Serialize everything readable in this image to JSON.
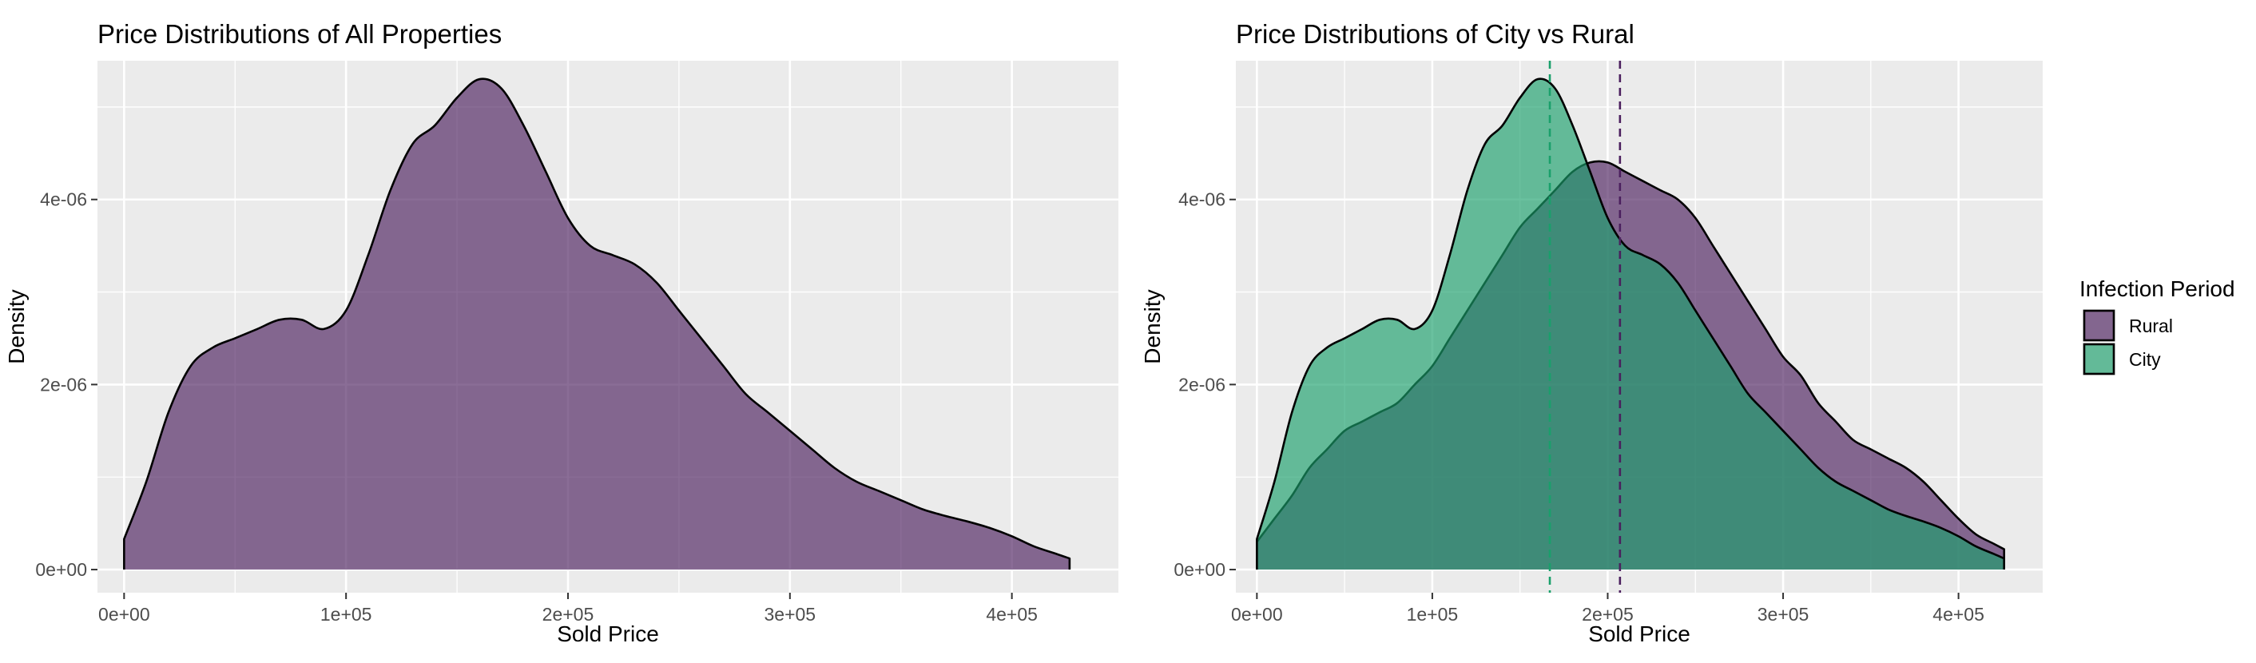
{
  "chart_data": [
    {
      "type": "area",
      "title": "Price Distributions of All Properties",
      "xlabel": "Sold Price",
      "ylabel": "Density",
      "xlim": [
        -12000,
        448000
      ],
      "ylim": [
        -2.5e-07,
        5.5e-06
      ],
      "x_ticks": [
        0,
        100000,
        200000,
        300000,
        400000
      ],
      "x_tick_labels": [
        "0e+00",
        "1e+05",
        "2e+05",
        "3e+05",
        "4e+05"
      ],
      "y_ticks": [
        0,
        2e-06,
        4e-06
      ],
      "y_tick_labels": [
        "0e+00",
        "2e-06",
        "4e-06"
      ],
      "grid": true,
      "series": [
        {
          "color": "#4b1f5e",
          "x": [
            0,
            10000,
            20000,
            30000,
            40000,
            50000,
            60000,
            70000,
            80000,
            90000,
            100000,
            110000,
            120000,
            130000,
            140000,
            150000,
            160000,
            170000,
            180000,
            190000,
            200000,
            210000,
            220000,
            230000,
            240000,
            250000,
            260000,
            270000,
            280000,
            290000,
            300000,
            310000,
            320000,
            330000,
            340000,
            350000,
            360000,
            370000,
            380000,
            390000,
            400000,
            410000,
            420000,
            426000
          ],
          "y": [
            3.3e-07,
            9.5e-07,
            1.7e-06,
            2.2e-06,
            2.4e-06,
            2.5e-06,
            2.6e-06,
            2.7e-06,
            2.7e-06,
            2.6e-06,
            2.8e-06,
            3.4e-06,
            4.1e-06,
            4.6e-06,
            4.8e-06,
            5.1e-06,
            5.3e-06,
            5.2e-06,
            4.8e-06,
            4.3e-06,
            3.8e-06,
            3.5e-06,
            3.4e-06,
            3.3e-06,
            3.1e-06,
            2.8e-06,
            2.5e-06,
            2.2e-06,
            1.9e-06,
            1.7e-06,
            1.5e-06,
            1.3e-06,
            1.1e-06,
            9.5e-07,
            8.5e-07,
            7.5e-07,
            6.5e-07,
            5.8e-07,
            5.2e-07,
            4.5e-07,
            3.6e-07,
            2.5e-07,
            1.7e-07,
            1.2e-07
          ]
        }
      ]
    },
    {
      "type": "area",
      "title": "Price Distributions of City vs Rural",
      "xlabel": "Sold Price",
      "ylabel": "Density",
      "xlim": [
        -12000,
        448000
      ],
      "ylim": [
        -2.5e-07,
        5.5e-06
      ],
      "x_ticks": [
        0,
        100000,
        200000,
        300000,
        400000
      ],
      "x_tick_labels": [
        "0e+00",
        "1e+05",
        "2e+05",
        "3e+05",
        "4e+05"
      ],
      "y_ticks": [
        0,
        2e-06,
        4e-06
      ],
      "y_tick_labels": [
        "0e+00",
        "2e-06",
        "4e-06"
      ],
      "grid": true,
      "legend": {
        "title": "Infection Period",
        "position": "right"
      },
      "series": [
        {
          "name": "Rural",
          "color": "#4b1f5e",
          "x": [
            0,
            10000,
            20000,
            30000,
            40000,
            50000,
            60000,
            70000,
            80000,
            90000,
            100000,
            110000,
            120000,
            130000,
            140000,
            150000,
            160000,
            170000,
            180000,
            190000,
            200000,
            210000,
            220000,
            230000,
            240000,
            250000,
            260000,
            270000,
            280000,
            290000,
            300000,
            310000,
            320000,
            330000,
            340000,
            350000,
            360000,
            370000,
            380000,
            390000,
            400000,
            410000,
            420000,
            426000
          ],
          "y": [
            3e-07,
            5.5e-07,
            8e-07,
            1.1e-06,
            1.3e-06,
            1.5e-06,
            1.6e-06,
            1.7e-06,
            1.8e-06,
            2e-06,
            2.2e-06,
            2.5e-06,
            2.8e-06,
            3.1e-06,
            3.4e-06,
            3.7e-06,
            3.9e-06,
            4.1e-06,
            4.3e-06,
            4.4e-06,
            4.4e-06,
            4.3e-06,
            4.2e-06,
            4.1e-06,
            4e-06,
            3.8e-06,
            3.5e-06,
            3.2e-06,
            2.9e-06,
            2.6e-06,
            2.3e-06,
            2.1e-06,
            1.8e-06,
            1.6e-06,
            1.4e-06,
            1.3e-06,
            1.2e-06,
            1.1e-06,
            9.5e-07,
            7.5e-07,
            5.5e-07,
            3.8e-07,
            2.8e-07,
            2.2e-07
          ]
        },
        {
          "name": "City",
          "color": "#1aa06b",
          "x": [
            0,
            10000,
            20000,
            30000,
            40000,
            50000,
            60000,
            70000,
            80000,
            90000,
            100000,
            110000,
            120000,
            130000,
            140000,
            150000,
            160000,
            170000,
            180000,
            190000,
            200000,
            210000,
            220000,
            230000,
            240000,
            250000,
            260000,
            270000,
            280000,
            290000,
            300000,
            310000,
            320000,
            330000,
            340000,
            350000,
            360000,
            370000,
            380000,
            390000,
            400000,
            410000,
            420000,
            426000
          ],
          "y": [
            3.3e-07,
            9.5e-07,
            1.7e-06,
            2.2e-06,
            2.4e-06,
            2.5e-06,
            2.6e-06,
            2.7e-06,
            2.7e-06,
            2.6e-06,
            2.8e-06,
            3.4e-06,
            4.1e-06,
            4.6e-06,
            4.8e-06,
            5.1e-06,
            5.3e-06,
            5.2e-06,
            4.8e-06,
            4.3e-06,
            3.8e-06,
            3.5e-06,
            3.4e-06,
            3.3e-06,
            3.1e-06,
            2.8e-06,
            2.5e-06,
            2.2e-06,
            1.9e-06,
            1.7e-06,
            1.5e-06,
            1.3e-06,
            1.1e-06,
            9.5e-07,
            8.5e-07,
            7.5e-07,
            6.5e-07,
            5.8e-07,
            5.2e-07,
            4.5e-07,
            3.6e-07,
            2.5e-07,
            1.7e-07,
            1.2e-07
          ]
        }
      ],
      "vlines": [
        {
          "series": "City",
          "x": 167000
        },
        {
          "series": "Rural",
          "x": 207000
        }
      ]
    }
  ]
}
